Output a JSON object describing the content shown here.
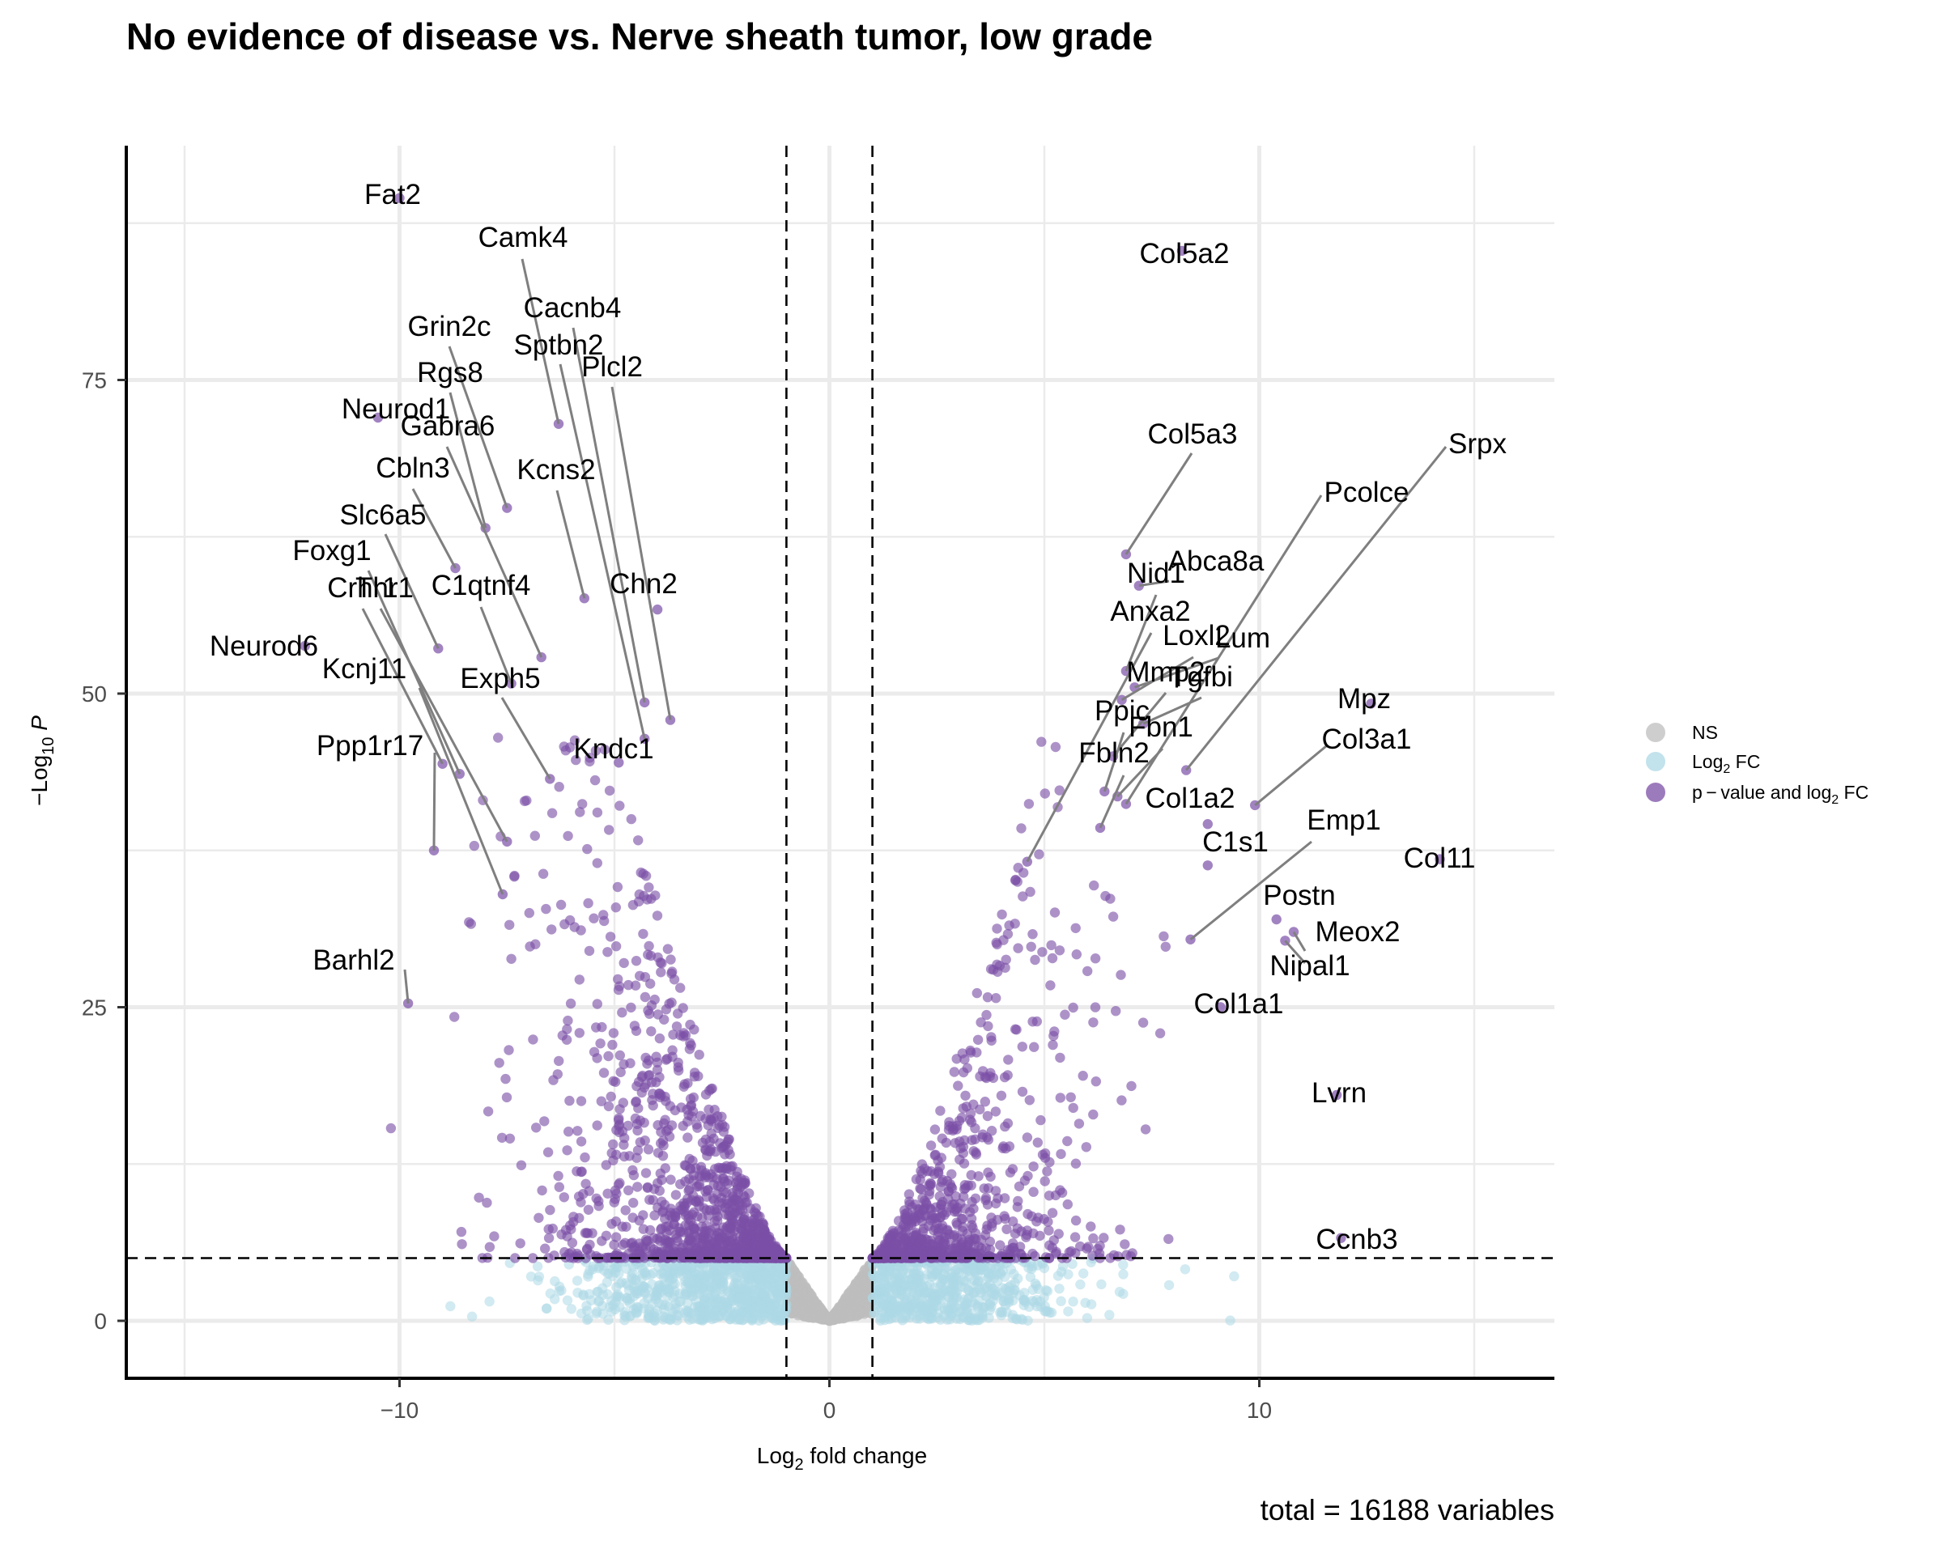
{
  "chart_data": {
    "type": "scatter",
    "title": "No evidence of disease vs. Nerve sheath tumor, low grade",
    "xlabel": "Log2 fold change",
    "ylabel": "-Log10 P",
    "xlim": [
      -15,
      15
    ],
    "ylim": [
      0,
      90
    ],
    "x_ticks": [
      -10,
      0,
      10
    ],
    "y_ticks": [
      0,
      25,
      50,
      75
    ],
    "fc_cutoff": 1,
    "p_cutoff_neglog10": 5,
    "caption": "total = 16188 variables",
    "legend": {
      "position": "right",
      "items": [
        {
          "label": "NS",
          "color": "#bebebe"
        },
        {
          "label": "Log2 FC",
          "color": "#add8e6"
        },
        {
          "label": "p - value and log2 FC",
          "color": "#7b4fa6"
        }
      ]
    },
    "colors": {
      "ns": "#bebebe",
      "fc": "#add8e6",
      "both": "#7b4fa6"
    },
    "labeled_genes": [
      {
        "gene": "Fat2",
        "x": -10.0,
        "y": 89.5
      },
      {
        "gene": "Camk4",
        "x": -6.3,
        "y": 71.5
      },
      {
        "gene": "Cacnb4",
        "x": -4.3,
        "y": 49.3
      },
      {
        "gene": "Grin2c",
        "x": -7.5,
        "y": 64.8
      },
      {
        "gene": "Sptbn2",
        "x": -4.3,
        "y": 46.4
      },
      {
        "gene": "Plcl2",
        "x": -3.7,
        "y": 47.9
      },
      {
        "gene": "Rgs8",
        "x": -8.0,
        "y": 63.2
      },
      {
        "gene": "Neurod1",
        "x": -10.5,
        "y": 72.0
      },
      {
        "gene": "Gabra6",
        "x": -6.7,
        "y": 52.9
      },
      {
        "gene": "Kcns2",
        "x": -5.7,
        "y": 57.6
      },
      {
        "gene": "Cbln3",
        "x": -8.7,
        "y": 60.0
      },
      {
        "gene": "Slc6a5",
        "x": -9.1,
        "y": 53.6
      },
      {
        "gene": "Chn2",
        "x": -4.0,
        "y": 56.7
      },
      {
        "gene": "Foxg1",
        "x": -8.6,
        "y": 43.6
      },
      {
        "gene": "Crhr1",
        "x": -9.0,
        "y": 44.4
      },
      {
        "gene": "Thr1",
        "x": -7.5,
        "y": 38.2
      },
      {
        "gene": "C1qtnf4",
        "x": -7.4,
        "y": 50.8
      },
      {
        "gene": "Neurod6",
        "x": -12.2,
        "y": 53.8
      },
      {
        "gene": "Kcnj11",
        "x": -7.6,
        "y": 34.0
      },
      {
        "gene": "Exph5",
        "x": -6.5,
        "y": 43.2
      },
      {
        "gene": "Kndc1",
        "x": -4.9,
        "y": 44.5
      },
      {
        "gene": "Ppp1r17",
        "x": -9.2,
        "y": 37.5
      },
      {
        "gene": "Barhl2",
        "x": -9.8,
        "y": 25.3
      },
      {
        "gene": "Col5a2",
        "x": 8.2,
        "y": 85.3
      },
      {
        "gene": "Col5a3",
        "x": 6.9,
        "y": 61.1
      },
      {
        "gene": "Srpx",
        "x": 8.3,
        "y": 43.9
      },
      {
        "gene": "Pcolce",
        "x": 6.9,
        "y": 41.2
      },
      {
        "gene": "Abca8a",
        "x": 7.2,
        "y": 58.6
      },
      {
        "gene": "Nid1",
        "x": 6.9,
        "y": 51.8
      },
      {
        "gene": "Anxa2",
        "x": 4.6,
        "y": 36.6
      },
      {
        "gene": "Loxl2",
        "x": 6.8,
        "y": 49.5
      },
      {
        "gene": "Lum",
        "x": 7.1,
        "y": 50.5
      },
      {
        "gene": "Mmp2",
        "x": 6.6,
        "y": 45.0
      },
      {
        "gene": "Tgfbi",
        "x": 7.3,
        "y": 47.6
      },
      {
        "gene": "Ppic",
        "x": 6.4,
        "y": 42.2
      },
      {
        "gene": "Fbn1",
        "x": 6.7,
        "y": 41.8
      },
      {
        "gene": "Fbln2",
        "x": 6.3,
        "y": 39.3
      },
      {
        "gene": "Mpz",
        "x": 12.6,
        "y": 49.2
      },
      {
        "gene": "Col3a1",
        "x": 9.9,
        "y": 41.1
      },
      {
        "gene": "Col1a2",
        "x": 8.8,
        "y": 39.6
      },
      {
        "gene": "Emp1",
        "x": 8.4,
        "y": 30.4
      },
      {
        "gene": "C1s1",
        "x": 8.8,
        "y": 36.3
      },
      {
        "gene": "Col11",
        "x": 14.2,
        "y": 36.8
      },
      {
        "gene": "Postn",
        "x": 10.4,
        "y": 32.0
      },
      {
        "gene": "Meox2",
        "x": 10.8,
        "y": 31.0
      },
      {
        "gene": "Nipal1",
        "x": 10.6,
        "y": 30.3
      },
      {
        "gene": "Col1a1",
        "x": 9.1,
        "y": 25.0
      },
      {
        "gene": "Lvrn",
        "x": 11.8,
        "y": 18.0
      },
      {
        "gene": "Ccnb3",
        "x": 11.9,
        "y": 6.6
      }
    ]
  }
}
